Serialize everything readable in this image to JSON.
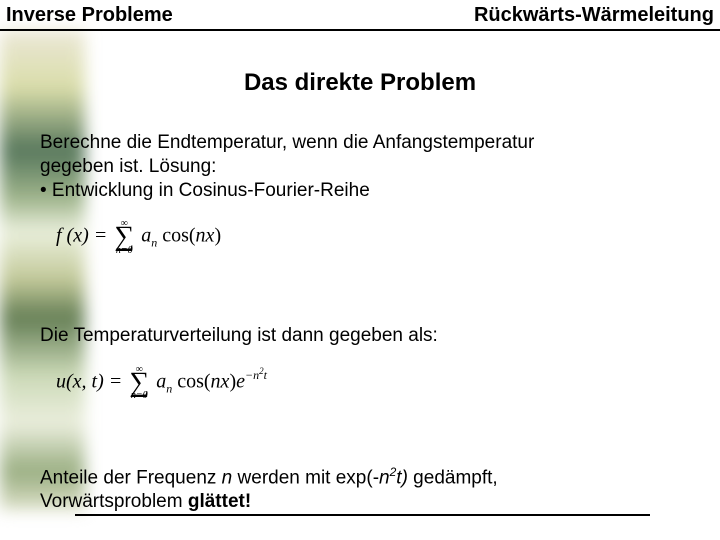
{
  "header": {
    "left": "Inverse Probleme",
    "right": "Rückwärts-Wärmeleitung"
  },
  "title": "Das direkte Problem",
  "para1": {
    "line1": "Berechne die Endtemperatur, wenn die Anfangstemperatur",
    "line2": "gegeben ist. Lösung:",
    "bullet": "• Entwicklung in Cosinus-Fourier-Reihe"
  },
  "para2": "Die Temperaturverteilung ist dann gegeben als:",
  "para3": {
    "prefix": "Anteile der Frequenz ",
    "n": "n",
    "mid": " werden mit exp(-",
    "exp_base": "n",
    "exp_sup": "2",
    "exp_tail": "t)",
    "suffix": " gedämpft,",
    "line2a": "Vorwärtsproblem ",
    "line2b": "glättet!"
  },
  "formula1": {
    "lhs": "f (x) = ",
    "sum_top": "∞",
    "sum_bot": "n=0",
    "rhs_a": "a",
    "rhs_sub": "n",
    "rhs_cos": " cos(",
    "rhs_nx": "nx",
    "rhs_close": ")"
  },
  "formula2": {
    "lhs": "u(x, t) = ",
    "sum_top": "∞",
    "sum_bot": "n=0",
    "a": "a",
    "a_sub": "n",
    "cos": " cos(",
    "nx": "nx",
    "close": ")",
    "e": "e",
    "exp": "−n",
    "exp2": "2",
    "exp_t": "t"
  },
  "colors": {
    "text": "#000000",
    "background": "#ffffff",
    "rule": "#000000"
  }
}
